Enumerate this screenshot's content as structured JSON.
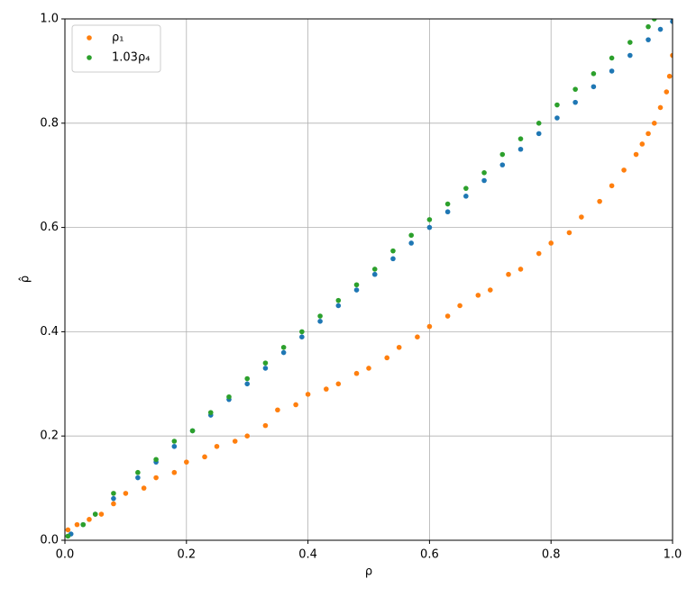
{
  "chart_data": {
    "type": "scatter",
    "xlabel": "ρ",
    "ylabel": "ρ̂",
    "xlim": [
      0,
      1
    ],
    "ylim": [
      0,
      1
    ],
    "xticks": [
      {
        "value": 0,
        "label": "0.0"
      },
      0.2,
      0.4,
      0.6,
      0.8,
      {
        "value": 1,
        "label": "1.0"
      }
    ],
    "yticks": [
      {
        "value": 0,
        "label": "0.0"
      },
      0.2,
      0.4,
      0.6,
      0.8,
      {
        "value": 1,
        "label": "1.0"
      }
    ],
    "grid": true,
    "legend": "upper left",
    "series": [
      {
        "color": "#1f77b4",
        "x": [
          0.01,
          0.03,
          0.05,
          0.08,
          0.12,
          0.15,
          0.18,
          0.21,
          0.24,
          0.27,
          0.3,
          0.33,
          0.36,
          0.39,
          0.42,
          0.45,
          0.48,
          0.51,
          0.54,
          0.57,
          0.6,
          0.63,
          0.66,
          0.69,
          0.72,
          0.75,
          0.78,
          0.81,
          0.84,
          0.87,
          0.9,
          0.93,
          0.96,
          0.98,
          1.0
        ],
        "values": [
          0.012,
          0.03,
          0.05,
          0.08,
          0.12,
          0.15,
          0.18,
          0.21,
          0.24,
          0.27,
          0.3,
          0.33,
          0.36,
          0.39,
          0.42,
          0.45,
          0.48,
          0.51,
          0.54,
          0.57,
          0.6,
          0.63,
          0.66,
          0.69,
          0.72,
          0.75,
          0.78,
          0.81,
          0.84,
          0.87,
          0.9,
          0.93,
          0.96,
          0.98,
          0.995
        ]
      },
      {
        "name": "ρ₁",
        "color": "#ff7f0e",
        "x": [
          0.005,
          0.02,
          0.04,
          0.06,
          0.08,
          0.1,
          0.13,
          0.15,
          0.18,
          0.2,
          0.23,
          0.25,
          0.28,
          0.3,
          0.33,
          0.35,
          0.38,
          0.4,
          0.43,
          0.45,
          0.48,
          0.5,
          0.53,
          0.55,
          0.58,
          0.6,
          0.63,
          0.65,
          0.68,
          0.7,
          0.73,
          0.75,
          0.78,
          0.8,
          0.83,
          0.85,
          0.88,
          0.9,
          0.92,
          0.94,
          0.95,
          0.96,
          0.97,
          0.98,
          0.99,
          0.995,
          1.0
        ],
        "values": [
          0.02,
          0.03,
          0.04,
          0.05,
          0.07,
          0.09,
          0.1,
          0.12,
          0.13,
          0.15,
          0.16,
          0.18,
          0.19,
          0.2,
          0.22,
          0.25,
          0.26,
          0.28,
          0.29,
          0.3,
          0.32,
          0.33,
          0.35,
          0.37,
          0.39,
          0.41,
          0.43,
          0.45,
          0.47,
          0.48,
          0.51,
          0.52,
          0.55,
          0.57,
          0.59,
          0.62,
          0.65,
          0.68,
          0.71,
          0.74,
          0.76,
          0.78,
          0.8,
          0.83,
          0.86,
          0.89,
          0.93
        ]
      },
      {
        "name": "1.03ρ₄",
        "color": "#2ca02c",
        "x": [
          0.005,
          0.03,
          0.05,
          0.08,
          0.12,
          0.15,
          0.18,
          0.21,
          0.24,
          0.27,
          0.3,
          0.33,
          0.36,
          0.39,
          0.42,
          0.45,
          0.48,
          0.51,
          0.54,
          0.57,
          0.6,
          0.63,
          0.66,
          0.69,
          0.72,
          0.75,
          0.78,
          0.81,
          0.84,
          0.87,
          0.9,
          0.93,
          0.96,
          0.97
        ],
        "values": [
          0.008,
          0.03,
          0.05,
          0.09,
          0.13,
          0.155,
          0.19,
          0.21,
          0.245,
          0.275,
          0.31,
          0.34,
          0.37,
          0.4,
          0.43,
          0.46,
          0.49,
          0.52,
          0.555,
          0.585,
          0.615,
          0.645,
          0.675,
          0.705,
          0.74,
          0.77,
          0.8,
          0.835,
          0.865,
          0.895,
          0.925,
          0.955,
          0.985,
          1.0
        ]
      }
    ]
  }
}
